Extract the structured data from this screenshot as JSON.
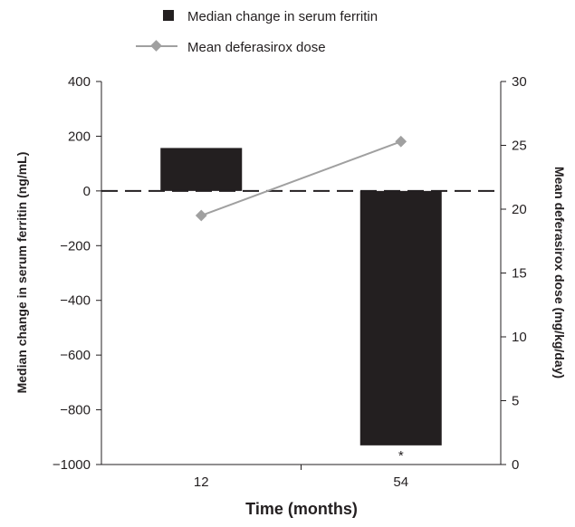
{
  "chart_data": {
    "type": "bar",
    "categories": [
      "12",
      "54"
    ],
    "xlabel": "Time (months)",
    "ylabel_left": "Median change in serum ferritin (ng/mL)",
    "ylabel_right": "Mean deferasirox dose (mg/kg/day)",
    "ylim_left": [
      -1000,
      400
    ],
    "ylim_right": [
      0,
      30
    ],
    "yticks_left": [
      400,
      200,
      0,
      -200,
      -400,
      -600,
      -800,
      -1000
    ],
    "yticks_right": [
      30,
      25,
      20,
      15,
      10,
      5,
      0
    ],
    "ytick_labels_left": [
      "400",
      "200",
      "0",
      "−200",
      "−400",
      "−600",
      "−800",
      "−1000"
    ],
    "series": [
      {
        "name": "Median change in serum ferritin",
        "type": "bar",
        "axis": "left",
        "values": [
          157,
          -930
        ],
        "color": "#231f20"
      },
      {
        "name": "Mean deferasirox dose",
        "type": "line",
        "axis": "right",
        "marker": "diamond",
        "values": [
          19.5,
          25.3
        ],
        "color": "#a0a0a0"
      }
    ],
    "annotations": [
      {
        "category": "54",
        "text": "*"
      }
    ],
    "reference_line": {
      "y": 0,
      "style": "dashed"
    },
    "legend_position": "top"
  }
}
